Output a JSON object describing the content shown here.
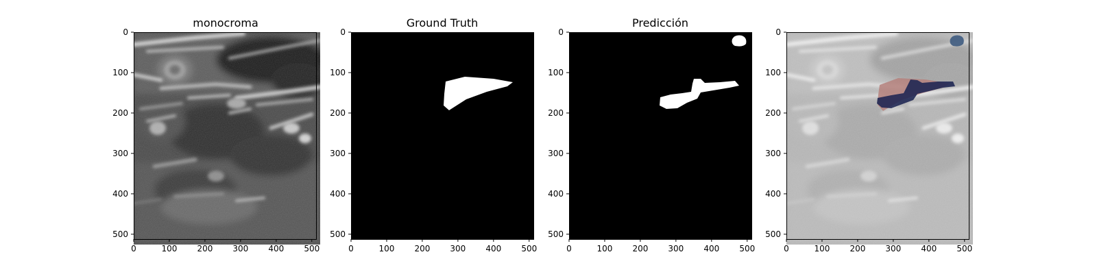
{
  "panels": [
    {
      "id": "monocroma",
      "title": "monocroma",
      "kind": "ultrasound-image"
    },
    {
      "id": "ground-truth",
      "title": "Ground Truth",
      "kind": "binary-mask"
    },
    {
      "id": "prediccion",
      "title": "Predicción",
      "kind": "binary-mask"
    },
    {
      "id": "overlay",
      "title": "",
      "kind": "overlay-image"
    }
  ],
  "axes": {
    "x_ticks": [
      "0",
      "100",
      "200",
      "300",
      "400",
      "500"
    ],
    "y_ticks": [
      "0",
      "100",
      "200",
      "300",
      "400",
      "500"
    ],
    "xlim": [
      0,
      512
    ],
    "ylim": [
      512,
      0
    ]
  },
  "colors": {
    "mask_background": "#000000",
    "mask_foreground": "#ffffff",
    "overlay_ground_truth": "#b5817c",
    "overlay_prediction": "#1d2452",
    "overlay_extra_blob": "#3e5b80"
  }
}
